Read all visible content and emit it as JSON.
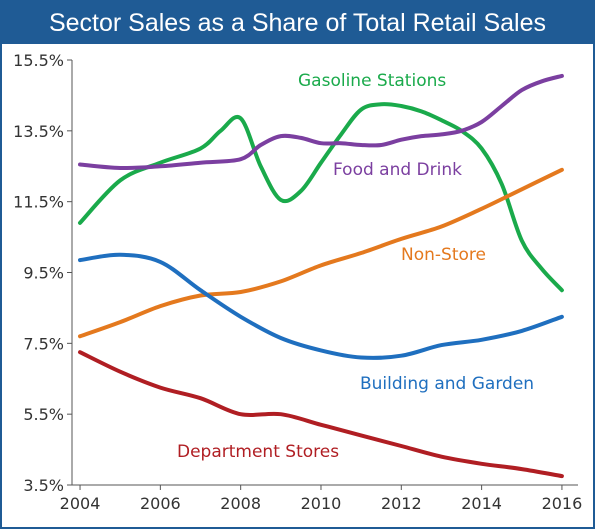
{
  "chart_data": {
    "type": "line",
    "title": "Sector Sales as a Share of Total Retail Sales",
    "xlabel": "",
    "ylabel": "",
    "xlim": [
      2003.8,
      2016.4
    ],
    "ylim": [
      3.5,
      15.5
    ],
    "x_ticks": [
      "2004",
      "2006",
      "2008",
      "2010",
      "2012",
      "2014",
      "2016"
    ],
    "y_ticks": [
      "15.5%",
      "13.5%",
      "11.5%",
      "9.5%",
      "7.5%",
      "5.5%",
      "3.5%"
    ],
    "grid": false,
    "legend": "none (series labeled inline)",
    "series": [
      {
        "name": "Gasoline Stations",
        "color": "#1aaa4b",
        "x": [
          2004,
          2005,
          2006,
          2007,
          2007.5,
          2008,
          2008.5,
          2009,
          2009.5,
          2010,
          2010.5,
          2011,
          2011.5,
          2012,
          2012.5,
          2013,
          2013.5,
          2014,
          2014.5,
          2015,
          2015.5,
          2016
        ],
        "values": [
          10.9,
          12.1,
          12.6,
          13.0,
          13.5,
          13.85,
          12.5,
          11.55,
          11.8,
          12.6,
          13.4,
          14.1,
          14.25,
          14.2,
          14.05,
          13.8,
          13.5,
          13.0,
          12.0,
          10.4,
          9.6,
          9.0
        ]
      },
      {
        "name": "Food and Drink",
        "color": "#7b3fa0",
        "x": [
          2004,
          2005,
          2006,
          2007,
          2008,
          2008.5,
          2009,
          2009.5,
          2010,
          2010.5,
          2011,
          2011.5,
          2012,
          2012.5,
          2013,
          2013.5,
          2014,
          2014.5,
          2015,
          2015.5,
          2016
        ],
        "values": [
          12.55,
          12.45,
          12.5,
          12.6,
          12.7,
          13.1,
          13.35,
          13.3,
          13.15,
          13.15,
          13.1,
          13.1,
          13.25,
          13.35,
          13.4,
          13.5,
          13.75,
          14.2,
          14.65,
          14.9,
          15.05
        ]
      },
      {
        "name": "Non-Store",
        "color": "#e4791e",
        "x": [
          2004,
          2005,
          2006,
          2007,
          2008,
          2009,
          2010,
          2011,
          2012,
          2013,
          2014,
          2015,
          2016
        ],
        "values": [
          7.7,
          8.1,
          8.55,
          8.85,
          8.95,
          9.25,
          9.7,
          10.05,
          10.45,
          10.8,
          11.3,
          11.85,
          12.4
        ]
      },
      {
        "name": "Building and Garden",
        "color": "#1f6fbf",
        "x": [
          2004,
          2005,
          2006,
          2007,
          2008,
          2009,
          2010,
          2011,
          2012,
          2013,
          2014,
          2015,
          2016
        ],
        "values": [
          9.85,
          10.0,
          9.8,
          9.0,
          8.25,
          7.65,
          7.3,
          7.1,
          7.15,
          7.45,
          7.6,
          7.85,
          8.25
        ]
      },
      {
        "name": "Department Stores",
        "color": "#b01e23",
        "x": [
          2004,
          2005,
          2006,
          2007,
          2008,
          2009,
          2010,
          2011,
          2012,
          2013,
          2014,
          2015,
          2016
        ],
        "values": [
          7.25,
          6.7,
          6.25,
          5.95,
          5.5,
          5.5,
          5.2,
          4.9,
          4.6,
          4.3,
          4.1,
          3.95,
          3.75
        ]
      }
    ]
  }
}
